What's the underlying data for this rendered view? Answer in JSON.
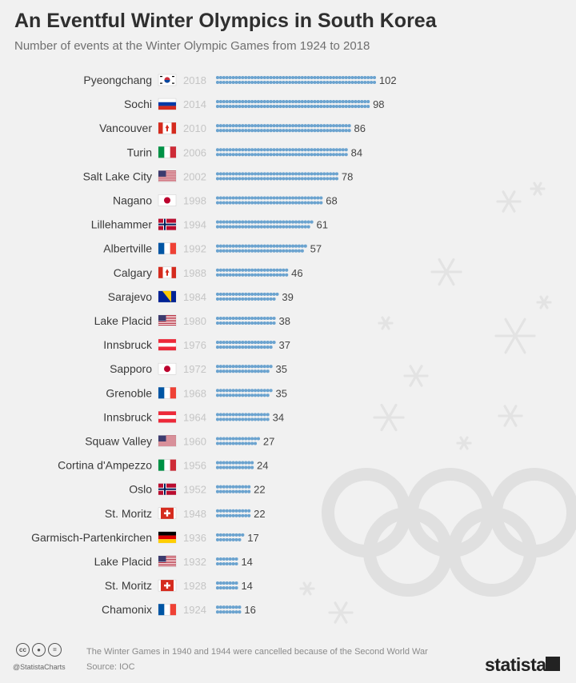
{
  "header": {
    "title": "An Eventful Winter Olympics in South Korea",
    "subtitle": "Number of events at the Winter Olympic Games from 1924 to 2018"
  },
  "colors": {
    "dot": "#6ba3cf",
    "background": "#f1f1f1",
    "decoration": "#e2e2e2"
  },
  "chart_data": {
    "type": "bar",
    "categories": [
      "Pyeongchang",
      "Sochi",
      "Vancouver",
      "Turin",
      "Salt Lake City",
      "Nagano",
      "Lillehammer",
      "Albertville",
      "Calgary",
      "Sarajevo",
      "Lake Placid",
      "Innsbruck",
      "Sapporo",
      "Grenoble",
      "Innsbruck",
      "Squaw Valley",
      "Cortina d'Ampezzo",
      "Oslo",
      "St. Moritz",
      "Garmisch-Partenkirchen",
      "Lake Placid",
      "St. Moritz",
      "Chamonix"
    ],
    "years": [
      "2018",
      "2014",
      "2010",
      "2006",
      "2002",
      "1998",
      "1994",
      "1992",
      "1988",
      "1984",
      "1980",
      "1976",
      "1972",
      "1968",
      "1964",
      "1960",
      "1956",
      "1952",
      "1948",
      "1936",
      "1932",
      "1928",
      "1924"
    ],
    "countries": [
      "south-korea",
      "russia",
      "canada",
      "italy",
      "usa",
      "japan",
      "norway",
      "france",
      "canada",
      "bosnia",
      "usa",
      "austria",
      "japan",
      "france",
      "austria",
      "usa",
      "italy",
      "norway",
      "switzerland",
      "germany",
      "usa",
      "switzerland",
      "france"
    ],
    "values": [
      102,
      98,
      86,
      84,
      78,
      68,
      61,
      57,
      46,
      39,
      38,
      37,
      35,
      35,
      34,
      27,
      24,
      22,
      22,
      17,
      14,
      14,
      16
    ],
    "xlabel": "",
    "ylabel": ""
  },
  "footer": {
    "note": "The Winter Games in 1940 and 1944 were cancelled because of the Second World War",
    "source": "Source: IOC",
    "handle": "@StatistaCharts",
    "brand": "statista",
    "license_icons": [
      "cc-icon",
      "by-icon",
      "nd-icon"
    ]
  }
}
